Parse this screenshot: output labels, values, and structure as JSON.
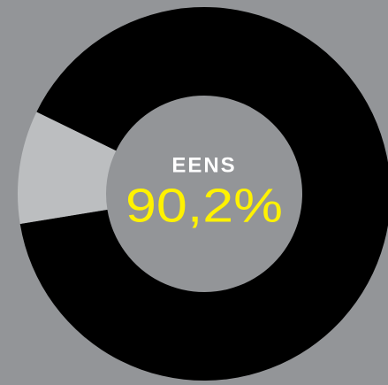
{
  "chart_data": {
    "type": "donut",
    "categories": [
      "EENS",
      null
    ],
    "values": [
      90.2,
      9.8
    ],
    "value_labels": [
      "90,2%",
      null
    ],
    "colors": [
      "#000000",
      "#bcbec0"
    ]
  }
}
